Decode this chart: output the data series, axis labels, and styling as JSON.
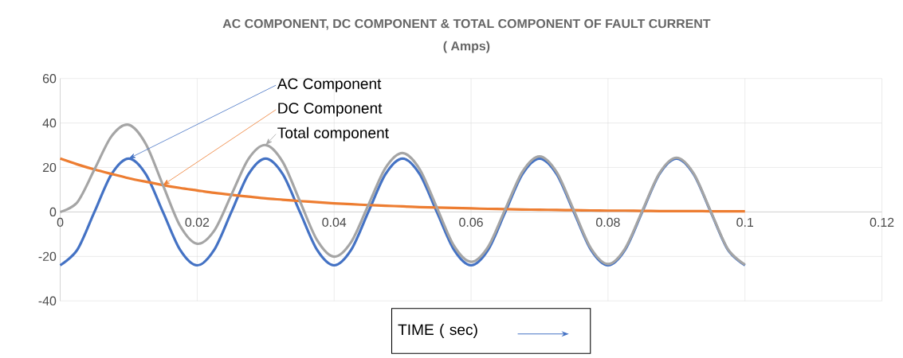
{
  "chart_data": {
    "type": "line",
    "title": "AC COMPONENT, DC COMPONENT & TOTAL COMPONENT OF FAULT CURRENT",
    "subtitle": "( Amps)",
    "xlabel": "TIME ( sec)",
    "x": [
      0,
      0.0025,
      0.005,
      0.0075,
      0.01,
      0.0125,
      0.015,
      0.0175,
      0.02,
      0.0225,
      0.025,
      0.0275,
      0.03,
      0.0325,
      0.035,
      0.0375,
      0.04,
      0.0425,
      0.045,
      0.0475,
      0.05,
      0.0525,
      0.055,
      0.0575,
      0.06,
      0.0625,
      0.065,
      0.0675,
      0.07,
      0.0725,
      0.075,
      0.0775,
      0.08,
      0.0825,
      0.085,
      0.0875,
      0.09,
      0.0925,
      0.095,
      0.0975,
      0.1
    ],
    "series": [
      {
        "name": "AC Component",
        "color": "#4472c4",
        "values": [
          -24,
          -17,
          0,
          17,
          24,
          17,
          0,
          -17,
          -24,
          -17,
          0,
          17,
          24,
          17,
          0,
          -17,
          -24,
          -17,
          0,
          17,
          24,
          17,
          0,
          -17,
          -24,
          -17,
          0,
          17,
          24,
          17,
          0,
          -17,
          -24,
          -17,
          0,
          17,
          24,
          17,
          0,
          -17,
          -24
        ]
      },
      {
        "name": "DC Component",
        "color": "#ed7d31",
        "values": [
          24,
          21.4,
          19.1,
          17.1,
          15.2,
          13.6,
          12.1,
          10.8,
          9.7,
          8.6,
          7.7,
          6.9,
          6.1,
          5.5,
          4.9,
          4.4,
          3.9,
          3.5,
          3.1,
          2.8,
          2.5,
          2.2,
          2.0,
          1.8,
          1.6,
          1.4,
          1.3,
          1.1,
          1.0,
          0.9,
          0.8,
          0.7,
          0.6,
          0.6,
          0.5,
          0.4,
          0.4,
          0.4,
          0.3,
          0.3,
          0.3
        ]
      },
      {
        "name": "Total component",
        "color": "#a5a5a5",
        "values": [
          0,
          4.4,
          19.1,
          34.1,
          39.2,
          30.6,
          12.1,
          -6.2,
          -14.3,
          -8.4,
          7.7,
          23.9,
          30.1,
          22.5,
          4.9,
          -12.6,
          -20.1,
          -13.5,
          3.1,
          19.8,
          26.5,
          19.2,
          2.0,
          -15.2,
          -22.4,
          -15.6,
          1.3,
          18.1,
          25.0,
          17.9,
          0.8,
          -16.3,
          -23.4,
          -16.4,
          0.5,
          17.4,
          24.4,
          17.4,
          0.3,
          -16.7,
          -23.7
        ]
      }
    ],
    "xlim": [
      0,
      0.12
    ],
    "xticks": [
      0,
      0.02,
      0.04,
      0.06,
      0.08,
      0.1,
      0.12
    ],
    "ylim": [
      -40,
      60
    ],
    "yticks": [
      -40,
      -20,
      0,
      20,
      40,
      60
    ],
    "grid": true,
    "marker": "none",
    "line_style": "solid"
  }
}
